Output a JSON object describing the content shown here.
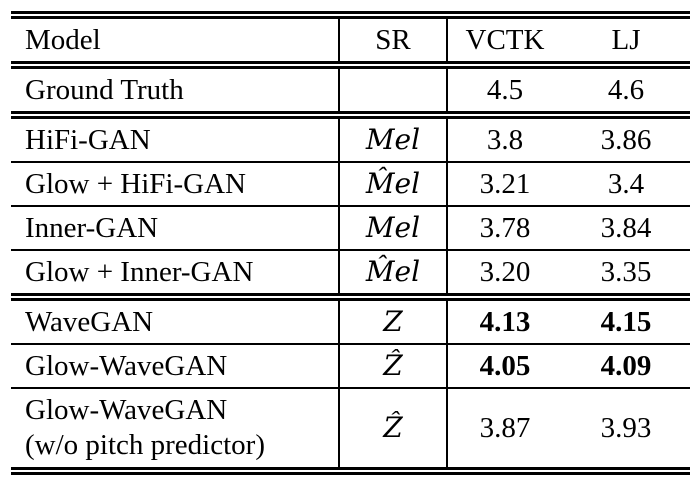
{
  "table": {
    "header": {
      "model": "Model",
      "sr": "SR",
      "vctk": "VCTK",
      "lj": "LJ"
    },
    "rows": [
      {
        "model": "Ground Truth",
        "sr": "",
        "vctk": "4.5",
        "lj": "4.6",
        "bold_values": false
      },
      {
        "model": "HiFi-GAN",
        "sr": "Mel",
        "vctk": "3.8",
        "lj": "3.86",
        "bold_values": false
      },
      {
        "model": "Glow + HiFi-GAN",
        "sr": "M̂el",
        "vctk": "3.21",
        "lj": "3.4",
        "bold_values": false
      },
      {
        "model": "Inner-GAN",
        "sr": "Mel",
        "vctk": "3.78",
        "lj": "3.84",
        "bold_values": false
      },
      {
        "model": "Glow + Inner-GAN",
        "sr": "M̂el",
        "vctk": "3.20",
        "lj": "3.35",
        "bold_values": false
      },
      {
        "model": "WaveGAN",
        "sr": "Z",
        "vctk": "4.13",
        "lj": "4.15",
        "bold_values": true
      },
      {
        "model": "Glow-WaveGAN",
        "sr": "Ẑ",
        "vctk": "4.05",
        "lj": "4.09",
        "bold_values": true
      },
      {
        "model": "Glow-WaveGAN",
        "model_note": "(w/o pitch predictor)",
        "sr": "Ẑ",
        "vctk": "3.87",
        "lj": "3.93",
        "bold_values": false
      }
    ]
  },
  "colors": {
    "text": "#000000",
    "background": "#ffffff",
    "rule": "#000000"
  }
}
